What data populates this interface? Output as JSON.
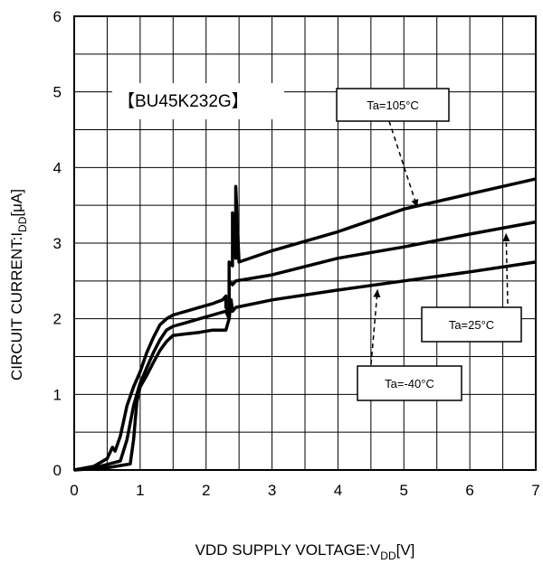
{
  "chart_data": {
    "type": "line",
    "title": "",
    "tag": "【BU45K232G】",
    "xlabel": {
      "main": "VDD SUPPLY VOLTAGE:V",
      "sub": "DD",
      "unit": "[V]"
    },
    "ylabel": {
      "main": "CIRCUIT CURRENT:I",
      "sub": "DD",
      "unit": "[μA]"
    },
    "xlim": [
      0,
      7
    ],
    "ylim": [
      0,
      6
    ],
    "x_major_ticks": [
      0,
      1,
      2,
      3,
      4,
      5,
      6,
      7
    ],
    "y_major_ticks": [
      0,
      1,
      2,
      3,
      4,
      5,
      6
    ],
    "x_minor_step": 0.5,
    "y_minor_step": 0.5,
    "grid": true,
    "series": [
      {
        "name": "Ta=105°C",
        "x": [
          0,
          0.3,
          0.5,
          0.58,
          0.62,
          0.7,
          0.8,
          0.9,
          1.0,
          1.1,
          1.2,
          1.3,
          1.4,
          1.5,
          1.7,
          1.9,
          2.1,
          2.25,
          2.3,
          2.3,
          2.35,
          2.35,
          2.4,
          2.4,
          2.45,
          2.45,
          2.5,
          3,
          4,
          5,
          6,
          7
        ],
        "y": [
          0,
          0.05,
          0.15,
          0.3,
          0.25,
          0.45,
          0.85,
          1.1,
          1.3,
          1.55,
          1.75,
          1.92,
          2.0,
          2.05,
          2.1,
          2.15,
          2.2,
          2.25,
          2.3,
          2.15,
          2.1,
          2.75,
          2.7,
          3.4,
          2.8,
          3.75,
          2.75,
          2.9,
          3.15,
          3.45,
          3.65,
          3.85
        ]
      },
      {
        "name": "Ta=25°C",
        "x": [
          0,
          0.4,
          0.7,
          0.8,
          0.9,
          1.0,
          1.1,
          1.2,
          1.3,
          1.4,
          1.5,
          1.7,
          1.9,
          2.1,
          2.3,
          2.35,
          2.35,
          2.4,
          2.45,
          2.45,
          3,
          4,
          5,
          6,
          7
        ],
        "y": [
          0,
          0.05,
          0.12,
          0.4,
          0.85,
          1.15,
          1.35,
          1.55,
          1.72,
          1.85,
          1.9,
          1.95,
          2.0,
          2.05,
          2.1,
          2.0,
          2.5,
          2.45,
          2.5,
          2.5,
          2.58,
          2.8,
          2.95,
          3.12,
          3.28
        ]
      },
      {
        "name": "Ta=-40°C",
        "x": [
          0,
          0.5,
          0.85,
          0.9,
          0.95,
          1.0,
          1.1,
          1.2,
          1.3,
          1.4,
          1.5,
          1.7,
          1.9,
          2.1,
          2.3,
          2.35,
          2.38,
          2.4,
          2.45,
          3,
          4,
          5,
          6,
          7
        ],
        "y": [
          0,
          0.03,
          0.08,
          0.4,
          0.9,
          1.1,
          1.25,
          1.42,
          1.58,
          1.7,
          1.78,
          1.8,
          1.82,
          1.85,
          1.85,
          2.0,
          2.25,
          2.1,
          2.15,
          2.25,
          2.38,
          2.5,
          2.62,
          2.75
        ]
      }
    ],
    "annotations": [
      {
        "label": "Ta=105°C",
        "arrow_from": [
          4.85,
          4.4
        ],
        "arrow_to": [
          5.2,
          3.48
        ]
      },
      {
        "label": "Ta=25°C",
        "arrow_from": [
          6.55,
          2.1
        ],
        "arrow_to": [
          6.55,
          3.12
        ]
      },
      {
        "label": "Ta=-40°C",
        "arrow_from": [
          4.6,
          1.4
        ],
        "arrow_to": [
          4.6,
          2.38
        ]
      }
    ]
  }
}
